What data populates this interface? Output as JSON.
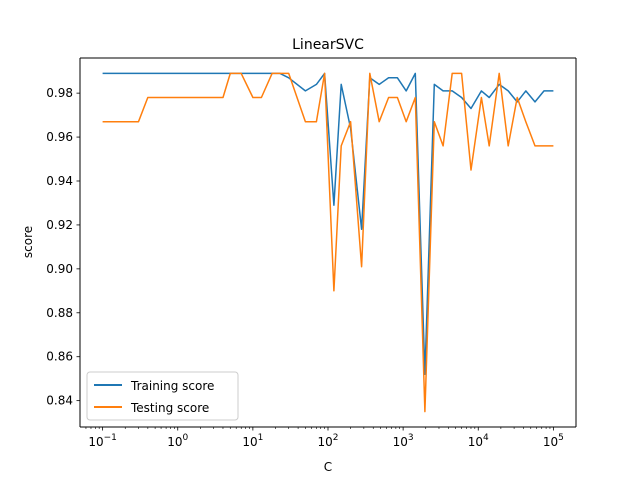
{
  "chart_data": {
    "type": "line",
    "title": "LinearSVC",
    "xlabel": "C",
    "ylabel": "score",
    "xscale": "log",
    "xlim": [
      0.05,
      200000
    ],
    "ylim": [
      0.828,
      0.996
    ],
    "x_tick_labels": [
      {
        "base": "10",
        "exp": "−1",
        "value": 0.1
      },
      {
        "base": "10",
        "exp": "0",
        "value": 1
      },
      {
        "base": "10",
        "exp": "1",
        "value": 10
      },
      {
        "base": "10",
        "exp": "2",
        "value": 100
      },
      {
        "base": "10",
        "exp": "3",
        "value": 1000
      },
      {
        "base": "10",
        "exp": "4",
        "value": 10000
      },
      {
        "base": "10",
        "exp": "5",
        "value": 100000
      }
    ],
    "y_ticks": [
      0.84,
      0.86,
      0.88,
      0.9,
      0.92,
      0.94,
      0.96,
      0.98
    ],
    "y_tick_labels": [
      "0.84",
      "0.86",
      "0.88",
      "0.90",
      "0.92",
      "0.94",
      "0.96",
      "0.98"
    ],
    "legend_position": "lower-left",
    "grid": false,
    "series": [
      {
        "name": "Training score",
        "color": "#1f77b4",
        "x": [
          0.1,
          0.3,
          0.4,
          1,
          4,
          5,
          7,
          10,
          13,
          18,
          23,
          30,
          50,
          70,
          90,
          120,
          150,
          200,
          280,
          360,
          480,
          640,
          840,
          1100,
          1450,
          1950,
          2600,
          3400,
          4500,
          6000,
          8000,
          11000,
          14000,
          19000,
          25000,
          33000,
          43000,
          57000,
          75000,
          100000
        ],
        "y": [
          0.989,
          0.989,
          0.989,
          0.989,
          0.989,
          0.989,
          0.989,
          0.989,
          0.989,
          0.989,
          0.989,
          0.987,
          0.981,
          0.984,
          0.989,
          0.929,
          0.984,
          0.964,
          0.918,
          0.987,
          0.984,
          0.987,
          0.987,
          0.981,
          0.989,
          0.852,
          0.984,
          0.981,
          0.981,
          0.978,
          0.973,
          0.981,
          0.978,
          0.984,
          0.981,
          0.976,
          0.981,
          0.976,
          0.981,
          0.981
        ]
      },
      {
        "name": "Testing score",
        "color": "#ff7f0e",
        "x": [
          0.1,
          0.3,
          0.4,
          1,
          4,
          5,
          7,
          10,
          13,
          18,
          23,
          30,
          50,
          70,
          90,
          120,
          150,
          200,
          280,
          360,
          480,
          640,
          840,
          1100,
          1450,
          1950,
          2600,
          3400,
          4500,
          6000,
          8000,
          11000,
          14000,
          19000,
          25000,
          33000,
          43000,
          57000,
          75000,
          100000
        ],
        "y": [
          0.967,
          0.967,
          0.978,
          0.978,
          0.978,
          0.989,
          0.989,
          0.978,
          0.978,
          0.989,
          0.989,
          0.989,
          0.967,
          0.967,
          0.989,
          0.89,
          0.956,
          0.967,
          0.901,
          0.989,
          0.967,
          0.978,
          0.978,
          0.967,
          0.978,
          0.835,
          0.967,
          0.956,
          0.989,
          0.989,
          0.945,
          0.978,
          0.956,
          0.989,
          0.956,
          0.978,
          0.967,
          0.956,
          0.956,
          0.956
        ]
      }
    ]
  }
}
